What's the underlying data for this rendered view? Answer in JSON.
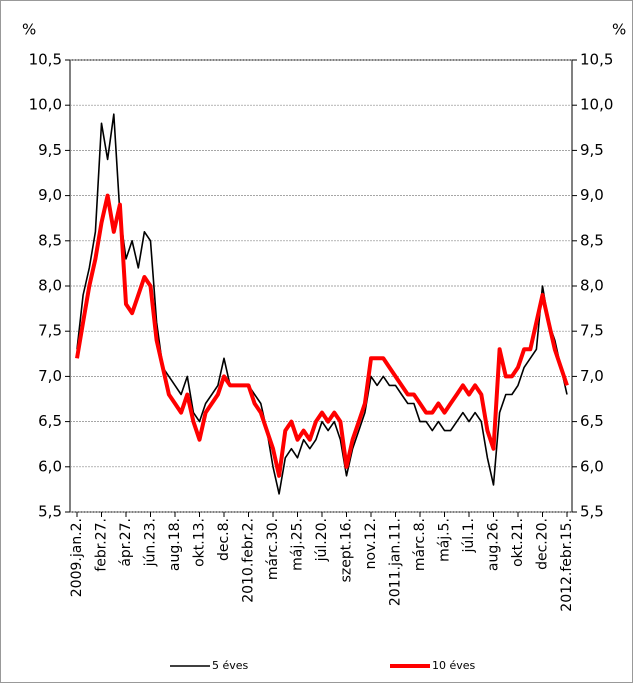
{
  "chart_data": {
    "type": "line",
    "y_label": "%",
    "y2_label": "%",
    "categories": [
      "2009.jan.2.",
      null,
      null,
      null,
      "febr.27.",
      null,
      null,
      null,
      "ápr.27.",
      null,
      null,
      null,
      "jún.23.",
      null,
      null,
      null,
      "aug.18.",
      null,
      null,
      null,
      "okt.13.",
      null,
      null,
      null,
      "dec.8.",
      null,
      null,
      null,
      "2010.febr.2.",
      null,
      null,
      null,
      "márc.30.",
      null,
      null,
      null,
      "máj.25.",
      null,
      null,
      null,
      "júl.20.",
      null,
      null,
      null,
      "szept.16.",
      null,
      null,
      null,
      "nov.12.",
      null,
      null,
      null,
      "2011.jan.11.",
      null,
      null,
      null,
      "márc.8.",
      null,
      null,
      null,
      "máj.5.",
      null,
      null,
      null,
      "júl.1.",
      null,
      null,
      null,
      "aug.26.",
      null,
      null,
      null,
      "okt.21.",
      null,
      null,
      null,
      "dec.20.",
      null,
      null,
      null,
      "2012.febr.15."
    ],
    "series": [
      {
        "name": "5 éves",
        "color": "#000000",
        "values": [
          7.3,
          7.9,
          8.2,
          8.6,
          9.8,
          9.4,
          9.9,
          8.8,
          8.3,
          8.5,
          8.2,
          8.6,
          8.5,
          7.6,
          7.1,
          7.0,
          6.9,
          6.8,
          7.0,
          6.6,
          6.5,
          6.7,
          6.8,
          6.9,
          7.2,
          6.9,
          6.9,
          6.9,
          6.9,
          6.8,
          6.7,
          6.4,
          6.0,
          5.7,
          6.1,
          6.2,
          6.1,
          6.3,
          6.2,
          6.3,
          6.5,
          6.4,
          6.5,
          6.3,
          5.9,
          6.2,
          6.4,
          6.6,
          7.0,
          6.9,
          7.0,
          6.9,
          6.9,
          6.8,
          6.7,
          6.7,
          6.5,
          6.5,
          6.4,
          6.5,
          6.4,
          6.4,
          6.5,
          6.6,
          6.5,
          6.6,
          6.5,
          6.1,
          5.8,
          6.6,
          6.8,
          6.8,
          6.9,
          7.1,
          7.2,
          7.3,
          8.0,
          7.6,
          7.4,
          7.1,
          6.8
        ]
      },
      {
        "name": "10 éves",
        "color": "#ff0000",
        "values": [
          7.2,
          7.6,
          8.0,
          8.3,
          8.7,
          9.0,
          8.6,
          8.9,
          7.8,
          7.7,
          7.9,
          8.1,
          8.0,
          7.4,
          7.1,
          6.8,
          6.7,
          6.6,
          6.8,
          6.5,
          6.3,
          6.6,
          6.7,
          6.8,
          7.0,
          6.9,
          6.9,
          6.9,
          6.9,
          6.7,
          6.6,
          6.4,
          6.2,
          5.9,
          6.4,
          6.5,
          6.3,
          6.4,
          6.3,
          6.5,
          6.6,
          6.5,
          6.6,
          6.5,
          6.0,
          6.3,
          6.5,
          6.7,
          7.2,
          7.2,
          7.2,
          7.1,
          7.0,
          6.9,
          6.8,
          6.8,
          6.7,
          6.6,
          6.6,
          6.7,
          6.6,
          6.7,
          6.8,
          6.9,
          6.8,
          6.9,
          6.8,
          6.4,
          6.2,
          7.3,
          7.0,
          7.0,
          7.1,
          7.3,
          7.3,
          7.6,
          7.9,
          7.6,
          7.3,
          7.1,
          6.9
        ]
      }
    ],
    "ylim": [
      5.5,
      10.5
    ],
    "yticks": [
      {
        "value": 5.5,
        "label": "5,5"
      },
      {
        "value": 6.0,
        "label": "6,0"
      },
      {
        "value": 6.5,
        "label": "6,5"
      },
      {
        "value": 7.0,
        "label": "7,0"
      },
      {
        "value": 7.5,
        "label": "7,5"
      },
      {
        "value": 8.0,
        "label": "8,0"
      },
      {
        "value": 8.5,
        "label": "8,5"
      },
      {
        "value": 9.0,
        "label": "9,0"
      },
      {
        "value": 9.5,
        "label": "9,5"
      },
      {
        "value": 10.0,
        "label": "10,0"
      },
      {
        "value": 10.5,
        "label": "10,5"
      }
    ],
    "y2lim": [
      5.5,
      10.5
    ],
    "y2ticks": [
      {
        "value": 5.5,
        "label": "5,5"
      },
      {
        "value": 6.0,
        "label": "6,0"
      },
      {
        "value": 6.5,
        "label": "6,5"
      },
      {
        "value": 7.0,
        "label": "7,0"
      },
      {
        "value": 7.5,
        "label": "7,5"
      },
      {
        "value": 8.0,
        "label": "8,0"
      },
      {
        "value": 8.5,
        "label": "8,5"
      },
      {
        "value": 9.0,
        "label": "9,0"
      },
      {
        "value": 9.5,
        "label": "9,5"
      },
      {
        "value": 10.0,
        "label": "10,0"
      },
      {
        "value": 10.5,
        "label": "10,5"
      }
    ],
    "grid": true,
    "legend": "bottom"
  }
}
